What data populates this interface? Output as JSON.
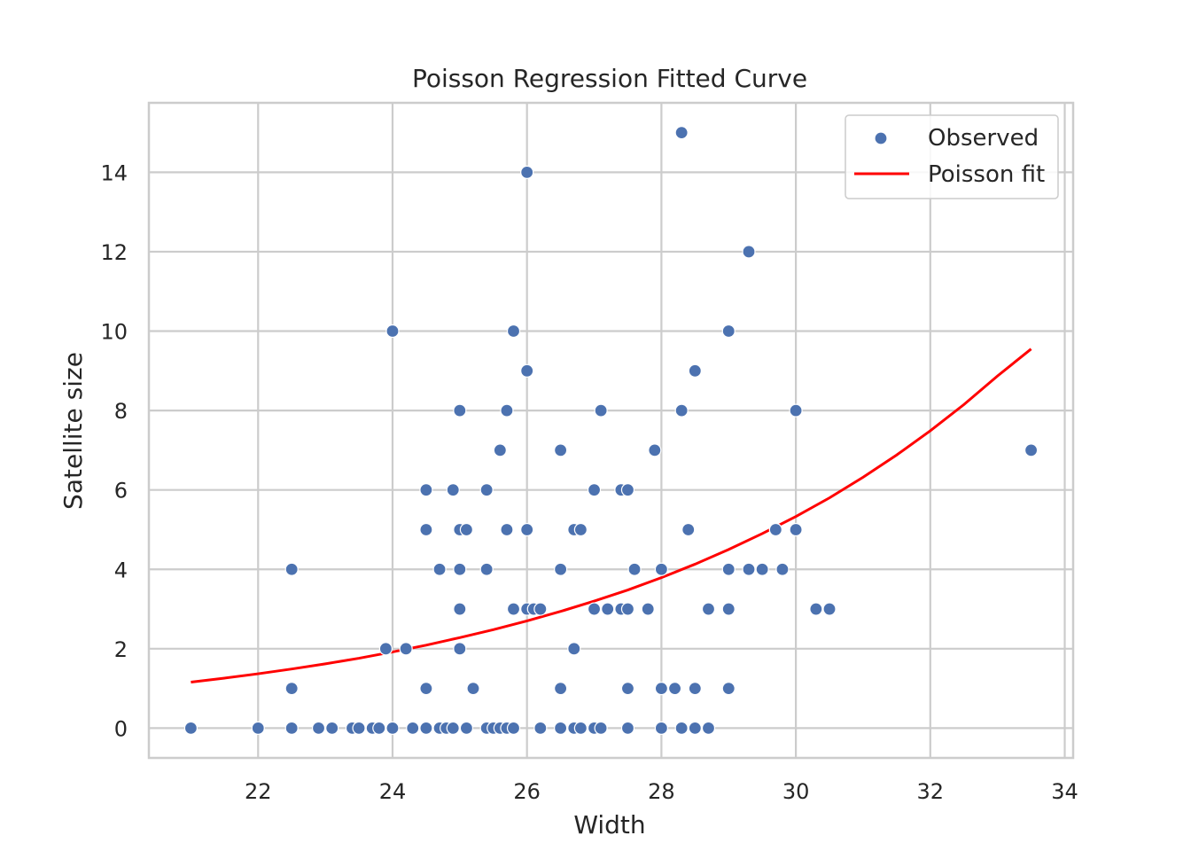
{
  "chart_data": {
    "type": "scatter",
    "title": "Poisson Regression Fitted Curve",
    "xlabel": "Width",
    "ylabel": "Satellite size",
    "xlim": [
      20.375,
      34.125
    ],
    "ylim": [
      -0.75,
      15.75
    ],
    "xticks": [
      22,
      24,
      26,
      28,
      30,
      32,
      34
    ],
    "yticks": [
      0,
      2,
      4,
      6,
      8,
      10,
      12,
      14
    ],
    "grid": true,
    "legend_position": "top-right",
    "series": [
      {
        "name": "Observed",
        "kind": "scatter",
        "color": "#4c72b0",
        "points": [
          [
            21.0,
            0
          ],
          [
            22.0,
            0
          ],
          [
            22.5,
            0
          ],
          [
            22.9,
            0
          ],
          [
            23.1,
            0
          ],
          [
            23.4,
            0
          ],
          [
            23.5,
            0
          ],
          [
            23.7,
            0
          ],
          [
            23.8,
            0
          ],
          [
            24.0,
            0
          ],
          [
            24.3,
            0
          ],
          [
            24.5,
            0
          ],
          [
            24.7,
            0
          ],
          [
            24.8,
            0
          ],
          [
            24.9,
            0
          ],
          [
            25.1,
            0
          ],
          [
            25.4,
            0
          ],
          [
            25.5,
            0
          ],
          [
            25.6,
            0
          ],
          [
            25.7,
            0
          ],
          [
            25.8,
            0
          ],
          [
            26.2,
            0
          ],
          [
            26.5,
            0
          ],
          [
            26.7,
            0
          ],
          [
            26.8,
            0
          ],
          [
            27.0,
            0
          ],
          [
            27.1,
            0
          ],
          [
            27.5,
            0
          ],
          [
            28.0,
            0
          ],
          [
            28.3,
            0
          ],
          [
            28.5,
            0
          ],
          [
            28.7,
            0
          ],
          [
            22.5,
            1
          ],
          [
            24.5,
            1
          ],
          [
            25.2,
            1
          ],
          [
            26.5,
            1
          ],
          [
            27.5,
            1
          ],
          [
            28.0,
            1
          ],
          [
            28.2,
            1
          ],
          [
            28.5,
            1
          ],
          [
            29.0,
            1
          ],
          [
            23.9,
            2
          ],
          [
            24.2,
            2
          ],
          [
            25.0,
            2
          ],
          [
            26.7,
            2
          ],
          [
            25.0,
            3
          ],
          [
            25.8,
            3
          ],
          [
            26.0,
            3
          ],
          [
            26.1,
            3
          ],
          [
            26.2,
            3
          ],
          [
            27.0,
            3
          ],
          [
            27.2,
            3
          ],
          [
            27.4,
            3
          ],
          [
            27.5,
            3
          ],
          [
            27.8,
            3
          ],
          [
            28.7,
            3
          ],
          [
            29.0,
            3
          ],
          [
            30.3,
            3
          ],
          [
            30.5,
            3
          ],
          [
            22.5,
            4
          ],
          [
            24.7,
            4
          ],
          [
            25.0,
            4
          ],
          [
            25.4,
            4
          ],
          [
            26.5,
            4
          ],
          [
            27.6,
            4
          ],
          [
            28.0,
            4
          ],
          [
            29.0,
            4
          ],
          [
            29.3,
            4
          ],
          [
            29.5,
            4
          ],
          [
            29.8,
            4
          ],
          [
            24.5,
            5
          ],
          [
            25.0,
            5
          ],
          [
            25.1,
            5
          ],
          [
            25.7,
            5
          ],
          [
            26.0,
            5
          ],
          [
            26.7,
            5
          ],
          [
            26.8,
            5
          ],
          [
            28.4,
            5
          ],
          [
            29.7,
            5
          ],
          [
            30.0,
            5
          ],
          [
            24.5,
            6
          ],
          [
            24.9,
            6
          ],
          [
            25.4,
            6
          ],
          [
            27.0,
            6
          ],
          [
            27.4,
            6
          ],
          [
            27.5,
            6
          ],
          [
            25.6,
            7
          ],
          [
            26.5,
            7
          ],
          [
            27.9,
            7
          ],
          [
            33.5,
            7
          ],
          [
            25.0,
            8
          ],
          [
            25.7,
            8
          ],
          [
            27.1,
            8
          ],
          [
            28.3,
            8
          ],
          [
            30.0,
            8
          ],
          [
            26.0,
            9
          ],
          [
            28.5,
            9
          ],
          [
            24.0,
            10
          ],
          [
            25.8,
            10
          ],
          [
            29.0,
            10
          ],
          [
            29.3,
            12
          ],
          [
            26.0,
            14
          ],
          [
            28.3,
            15
          ]
        ]
      },
      {
        "name": "Poisson fit",
        "kind": "line",
        "color": "#ff0000",
        "x": [
          21.0,
          21.5,
          22.0,
          22.5,
          23.0,
          23.5,
          24.0,
          24.5,
          25.0,
          25.5,
          26.0,
          26.5,
          27.0,
          27.5,
          28.0,
          28.5,
          29.0,
          29.5,
          30.0,
          30.5,
          31.0,
          31.5,
          32.0,
          32.5,
          33.0,
          33.5
        ],
        "y": [
          1.16,
          1.26,
          1.37,
          1.49,
          1.62,
          1.76,
          1.92,
          2.09,
          2.28,
          2.48,
          2.7,
          2.94,
          3.2,
          3.48,
          3.79,
          4.13,
          4.5,
          4.9,
          5.33,
          5.8,
          6.32,
          6.88,
          7.49,
          8.15,
          8.87,
          9.55
        ]
      }
    ]
  }
}
